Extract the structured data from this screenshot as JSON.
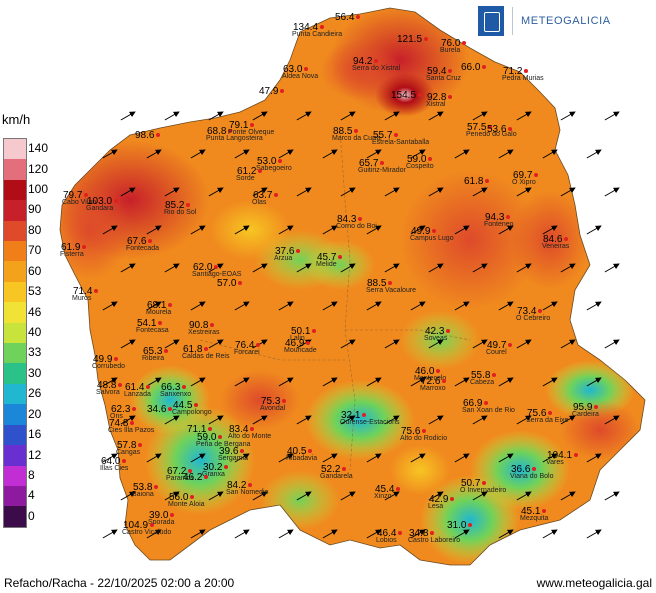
{
  "logo": {
    "text": "METEOGALICIA"
  },
  "legend": {
    "unit": "km/h",
    "levels": [
      {
        "label": "140",
        "color": "#f6c9cf"
      },
      {
        "label": "120",
        "color": "#e46f7c"
      },
      {
        "label": "100",
        "color": "#b10d16"
      },
      {
        "label": "90",
        "color": "#c8202a"
      },
      {
        "label": "80",
        "color": "#de4a2a"
      },
      {
        "label": "70",
        "color": "#f07f1a"
      },
      {
        "label": "60",
        "color": "#f4a21c"
      },
      {
        "label": "53",
        "color": "#f7c623"
      },
      {
        "label": "46",
        "color": "#f1e336"
      },
      {
        "label": "40",
        "color": "#c7e33c"
      },
      {
        "label": "33",
        "color": "#6fd25a"
      },
      {
        "label": "30",
        "color": "#2bc28a"
      },
      {
        "label": "26",
        "color": "#21b7d0"
      },
      {
        "label": "20",
        "color": "#1c86d8"
      },
      {
        "label": "16",
        "color": "#2f51cc"
      },
      {
        "label": "12",
        "color": "#6a2fd0"
      },
      {
        "label": "8",
        "color": "#c12fd4"
      },
      {
        "label": "4",
        "color": "#8e1aa0"
      },
      {
        "label": "0",
        "color": "#3b0b4a"
      }
    ]
  },
  "footer": {
    "left": "Refacho/Racha - 22/10/2025 02:00 a 20:00",
    "right": "www.meteogalicia.gal"
  },
  "stations": [
    {
      "v": "134.4",
      "n": "Punta Candieira"
    },
    {
      "v": "56.4",
      "n": ""
    },
    {
      "v": "121.5",
      "n": ""
    },
    {
      "v": "76.0",
      "n": "Burela"
    },
    {
      "v": "94.2",
      "n": "Serra do Xistral"
    },
    {
      "v": "63.0",
      "n": "Aldea Nova"
    },
    {
      "v": "59.4",
      "n": "Santa Cruz"
    },
    {
      "v": "66.0",
      "n": ""
    },
    {
      "v": "71.2",
      "n": "Pedra Murias"
    },
    {
      "v": "47.9",
      "n": ""
    },
    {
      "v": "154.5",
      "n": ""
    },
    {
      "v": "92.8",
      "n": "Xistral"
    },
    {
      "v": "98.6",
      "n": ""
    },
    {
      "v": "68.8",
      "n": "Punta Langosteira"
    },
    {
      "v": "79.1",
      "n": "Ponte Olveque"
    },
    {
      "v": "88.5",
      "n": "Marco da Curra"
    },
    {
      "v": "55.7",
      "n": "Estrela-Santaballa"
    },
    {
      "v": "57.5",
      "n": "Penedo do Galo"
    },
    {
      "v": "53.6",
      "n": ""
    },
    {
      "v": "53.0",
      "n": "Sabegoeiro"
    },
    {
      "v": "61.2",
      "n": "Sorde"
    },
    {
      "v": "65.7",
      "n": "Guitiriz-Mirador"
    },
    {
      "v": "59.0",
      "n": "Cospeito"
    },
    {
      "v": "69.7",
      "n": "O Xipro"
    },
    {
      "v": "79.7",
      "n": "Cabo Vilan"
    },
    {
      "v": "103.0",
      "n": "Gandara"
    },
    {
      "v": "85.2",
      "n": "Rio do Sol"
    },
    {
      "v": "63.7",
      "n": "Olas"
    },
    {
      "v": "61.8",
      "n": ""
    },
    {
      "v": "84.3",
      "n": "Corno do Boi"
    },
    {
      "v": "94.3",
      "n": "Fonteneo"
    },
    {
      "v": "49.9",
      "n": "Campus Lugo"
    },
    {
      "v": "84.6",
      "n": "Veneiras"
    },
    {
      "v": "61.9",
      "n": "Fisterra"
    },
    {
      "v": "67.6",
      "n": "Fontecada"
    },
    {
      "v": "37.6",
      "n": "Arzua"
    },
    {
      "v": "45.7",
      "n": "Melide"
    },
    {
      "v": "62.0",
      "n": "Santiago-EOAS"
    },
    {
      "v": "57.0",
      "n": ""
    },
    {
      "v": "88.5",
      "n": "Serra Vacaloure"
    },
    {
      "v": "71.4",
      "n": "Muros"
    },
    {
      "v": "68.1",
      "n": "Mourela"
    },
    {
      "v": "73.4",
      "n": "O Cebreiro"
    },
    {
      "v": "54.1",
      "n": "Fontecasa"
    },
    {
      "v": "90.8",
      "n": "Xestreiras"
    },
    {
      "v": "50.1",
      "n": "Lalin"
    },
    {
      "v": "42.3",
      "n": "Soveas"
    },
    {
      "v": "65.3",
      "n": "Ribeira"
    },
    {
      "v": "61.8",
      "n": "Caldas de Reis"
    },
    {
      "v": "76.4",
      "n": "Forcarei"
    },
    {
      "v": "46.9",
      "n": "Mouricade"
    },
    {
      "v": "49.7",
      "n": "Courel"
    },
    {
      "v": "49.9",
      "n": "Corrubedo"
    },
    {
      "v": "46.0",
      "n": "Montecelo"
    },
    {
      "v": "72.6",
      "n": "Marroxo"
    },
    {
      "v": "55.8",
      "n": "Cabeza"
    },
    {
      "v": "48.8",
      "n": "Salvora"
    },
    {
      "v": "61.4",
      "n": "Lanzada"
    },
    {
      "v": "66.3",
      "n": "Sanxenxo"
    },
    {
      "v": "44.5",
      "n": "Campolongo"
    },
    {
      "v": "75.3",
      "n": "Avondal"
    },
    {
      "v": "66.9",
      "n": "San Xoan de Rio"
    },
    {
      "v": "62.3",
      "n": "Ons"
    },
    {
      "v": "34.6",
      "n": ""
    },
    {
      "v": "71.1",
      "n": ""
    },
    {
      "v": "83.4",
      "n": "Alto do Monte"
    },
    {
      "v": "32.1",
      "n": "Ourense-Estacions"
    },
    {
      "v": "75.6",
      "n": "Alto do Rodicio"
    },
    {
      "v": "75.6",
      "n": "Serra da Eixe"
    },
    {
      "v": "95.9",
      "n": "Cardeira"
    },
    {
      "v": "74.8",
      "n": "Cies Illa Pazos"
    },
    {
      "v": "59.0",
      "n": "Peña de Bergana"
    },
    {
      "v": "57.8",
      "n": "Cangas"
    },
    {
      "v": "39.6",
      "n": "Sergamia"
    },
    {
      "v": "40.5",
      "n": "Ribadavia"
    },
    {
      "v": "64.0",
      "n": "Illas Cies"
    },
    {
      "v": "104.1",
      "n": "Vares"
    },
    {
      "v": "36.6",
      "n": "Viana do Bolo"
    },
    {
      "v": "67.2",
      "n": "Paramos"
    },
    {
      "v": "30.2",
      "n": "Granxa"
    },
    {
      "v": "46.2",
      "n": ""
    },
    {
      "v": "52.2",
      "n": "Gandarela"
    },
    {
      "v": "50.7",
      "n": "O Invernadeiro"
    },
    {
      "v": "84.2",
      "n": "San Nomedio"
    },
    {
      "v": "45.4",
      "n": "Xinzo"
    },
    {
      "v": "53.8",
      "n": "Baiona"
    },
    {
      "v": "56.0",
      "n": "Monte Aloia"
    },
    {
      "v": "42.9",
      "n": "Lesa"
    },
    {
      "v": "45.1",
      "n": "Mezquita"
    },
    {
      "v": "39.0",
      "n": "Sporada"
    },
    {
      "v": "31.0",
      "n": ""
    },
    {
      "v": "104.9",
      "n": "Castro Vicaludo"
    },
    {
      "v": "34.8",
      "n": "Castro Laboreiro"
    },
    {
      "v": "46.4",
      "n": "Lobios"
    }
  ]
}
